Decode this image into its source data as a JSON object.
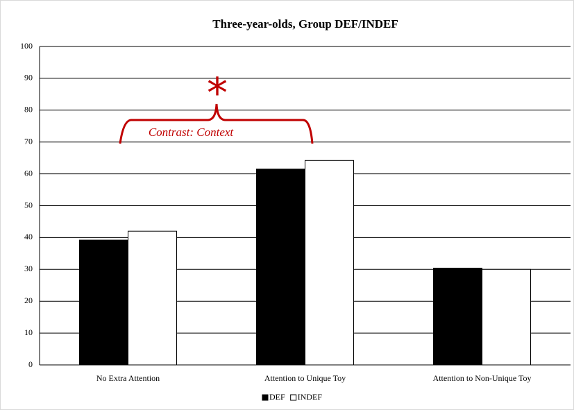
{
  "chart_data": {
    "type": "bar",
    "title": "Three-year-olds, Group DEF/INDEF",
    "categories": [
      "No Extra Attention",
      "Attention to Unique Toy",
      "Attention to Non-Unique Toy"
    ],
    "series": [
      {
        "name": "DEF",
        "color": "#000000",
        "values": [
          39.2,
          61.5,
          30.4
        ]
      },
      {
        "name": "INDEF",
        "color": "#ffffff",
        "values": [
          42,
          64.2,
          30.0
        ]
      }
    ],
    "ylim": [
      0,
      100
    ],
    "yticks": [
      0,
      10,
      20,
      30,
      40,
      50,
      60,
      70,
      80,
      90,
      100
    ],
    "grid": true,
    "legend": "bottom",
    "annotations": [
      "Contrast: Context",
      "*"
    ]
  }
}
